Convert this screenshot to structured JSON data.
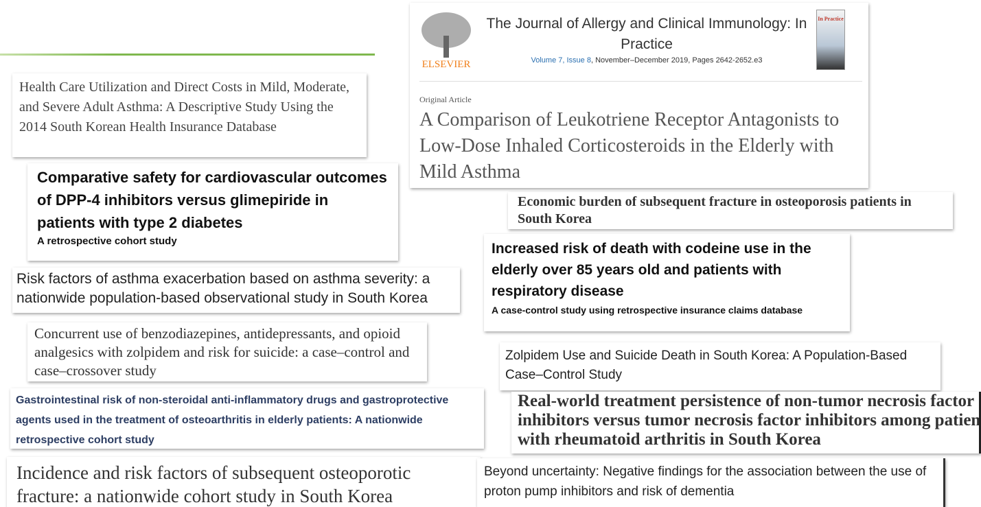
{
  "journal_card": {
    "publisher": "ELSEVIER",
    "journal": "The Journal of Allergy and Clinical Immunology: In Practice",
    "cover_label": "In Practice",
    "volume": "Volume 7, Issue 8",
    "details": ", November–December 2019, Pages 2642-2652.e3",
    "article_type": "Original Article",
    "title": "A Comparison of Leukotriene Receptor Antagonists to Low-Dose Inhaled Corticosteroids in the Elderly with Mild Asthma"
  },
  "cards": [
    {
      "title": "Health Care Utilization and Direct Costs in Mild, Moderate, and Severe Adult Asthma: A Descriptive Study Using the 2014 South Korean Health Insurance Database"
    },
    {
      "title": "Comparative safety for cardiovascular outcomes of DPP-4 inhibitors versus glimepiride in patients with type 2 diabetes",
      "subtitle": "A retrospective cohort study"
    },
    {
      "title": "Risk factors of asthma exacerbation based on asthma severity: a nationwide population-based observational study in South Korea"
    },
    {
      "title": "Concurrent use of benzodiazepines, antidepressants, and opioid analgesics with zolpidem and risk for suicide: a case–control and case–crossover study"
    },
    {
      "title": "Gastrointestinal risk of non-steroidal anti-inflammatory drugs and gastroprotective agents used in the treatment of osteoarthritis in elderly patients: A nationwide retrospective cohort study"
    },
    {
      "title": "Incidence and risk factors of subsequent osteoporotic fracture: a nationwide cohort study in South Korea"
    },
    {
      "title": "Economic burden of subsequent fracture in osteoporosis patients in South Korea"
    },
    {
      "title": "Increased risk of death with codeine use in the elderly over 85 years old and patients with respiratory disease",
      "subtitle": "A case-control study using retrospective insurance claims database"
    },
    {
      "title": "Zolpidem Use and Suicide Death in South Korea: A Population-Based Case–Control Study"
    },
    {
      "title": "Real-world treatment persistence of non-tumor necrosis factor inhibitors versus tumor necrosis factor inhibitors among patients with rheumatoid arthritis in South Korea"
    },
    {
      "title": "Beyond uncertainty: Negative findings for the association between the use of proton pump inhibitors and risk of dementia"
    }
  ]
}
